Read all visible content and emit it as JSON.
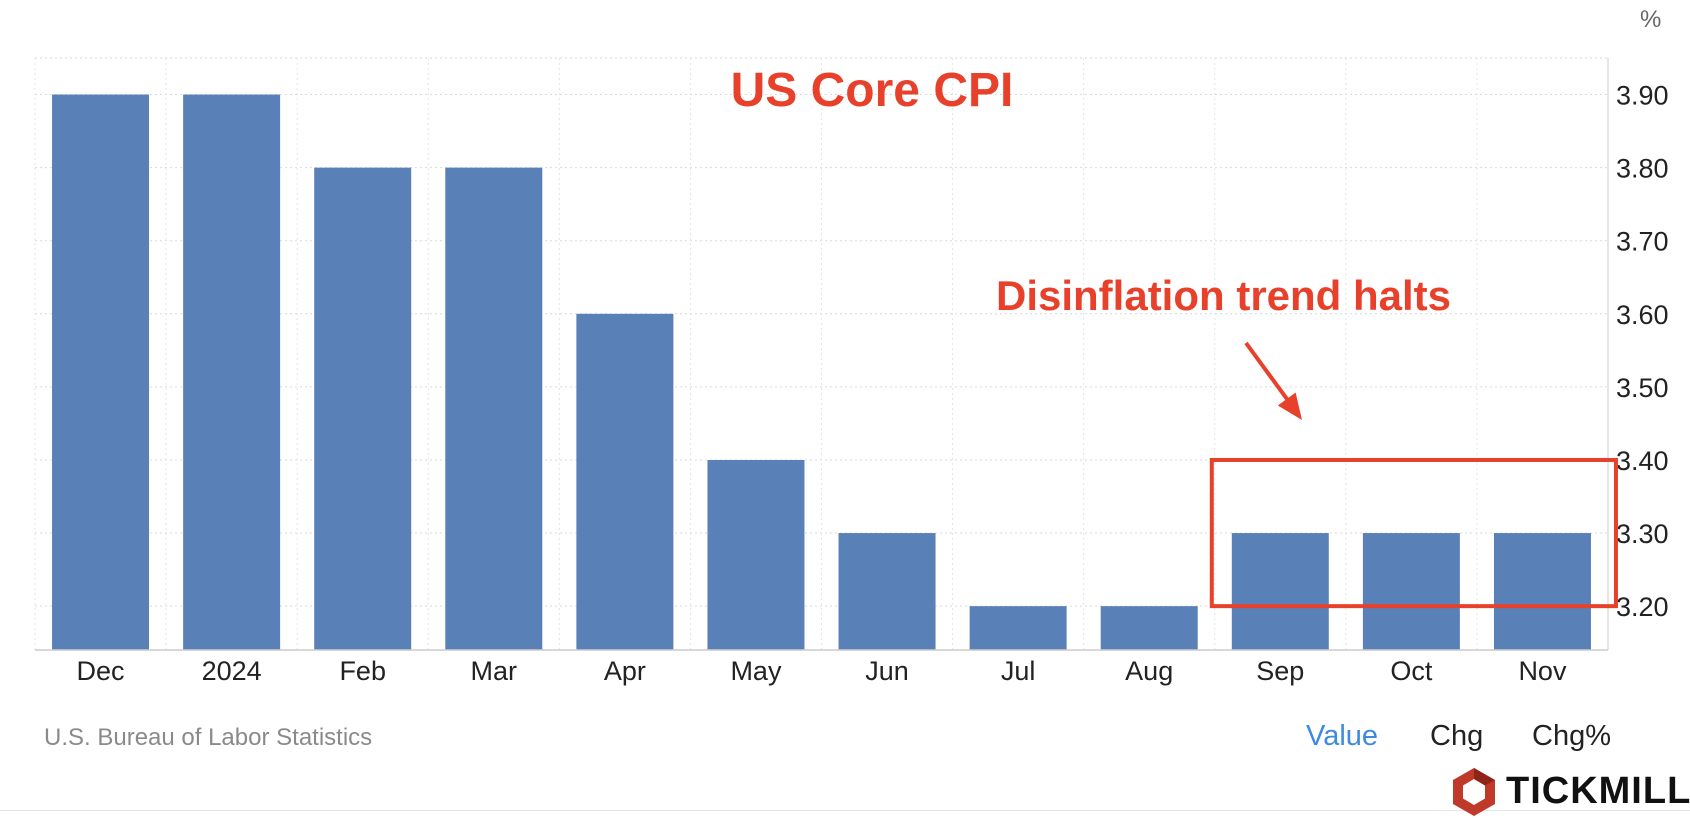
{
  "chart_data": {
    "type": "bar",
    "title": "US Core CPI",
    "unit": "%",
    "categories": [
      "Dec",
      "2024",
      "Feb",
      "Mar",
      "Apr",
      "May",
      "Jun",
      "Jul",
      "Aug",
      "Sep",
      "Oct",
      "Nov"
    ],
    "values": [
      3.9,
      3.9,
      3.8,
      3.8,
      3.6,
      3.4,
      3.3,
      3.2,
      3.2,
      3.3,
      3.3,
      3.3
    ],
    "ylim": [
      3.14,
      3.95
    ],
    "yticks": [
      "3.90",
      "3.80",
      "3.70",
      "3.60",
      "3.50",
      "3.40",
      "3.30",
      "3.20"
    ],
    "ytick_values": [
      3.9,
      3.8,
      3.7,
      3.6,
      3.5,
      3.4,
      3.3,
      3.2
    ],
    "y_axis_side": "right",
    "grid": true,
    "bar_color": "#5a80b8",
    "annotation": {
      "text": "Disinflation trend halts",
      "highlight_categories": [
        "Sep",
        "Oct",
        "Nov"
      ],
      "highlight_range": [
        3.2,
        3.4
      ],
      "color": "#e8412b"
    },
    "title_color": "#e8412b"
  },
  "source": "U.S. Bureau of Labor Statistics",
  "toggles": [
    {
      "label": "Value",
      "active": true
    },
    {
      "label": "Chg",
      "active": false
    },
    {
      "label": "Chg%",
      "active": false
    }
  ],
  "brand": {
    "name": "TICKMILL",
    "logo_icon": "tickmill-hexagon-icon"
  }
}
